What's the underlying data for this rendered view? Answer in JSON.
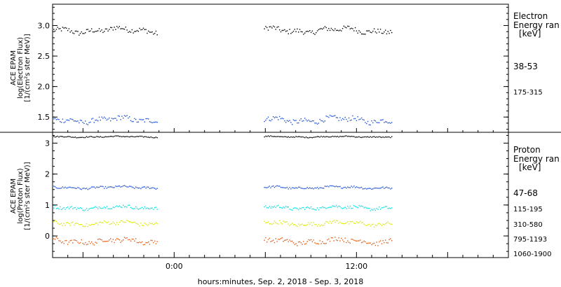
{
  "xlabel": "hours:minutes, Sep.  2, 2018 - Sep.  3, 2018",
  "x_ticks": [
    "0:00",
    "12:00"
  ],
  "colors": {
    "frame": "#000000",
    "black_series": "#000000",
    "blue_series": "#1f4fd0",
    "cyan_series": "#00dede",
    "yellow_series": "#d9e600",
    "orange_series": "#e05a10"
  },
  "chart_data": [
    {
      "type": "scatter",
      "panel": "electron",
      "ylabel_lines": [
        "ACE EPAM",
        "log(Electron Flux)",
        "[1/(cm²s ster MeV)]"
      ],
      "yticks": [
        {
          "value": 3.0,
          "label": "3.0"
        },
        {
          "value": 2.5,
          "label": "2.5"
        },
        {
          "value": 2.0,
          "label": "2.0"
        },
        {
          "value": 1.5,
          "label": "1.5"
        }
      ],
      "ylim": [
        1.25,
        3.35
      ],
      "xlim_hours": [
        -8,
        22
      ],
      "data_gaps_hours": [
        [
          -1.1,
          5.9
        ],
        [
          14.3,
          22
        ]
      ],
      "legend": {
        "title_lines": [
          "Electron",
          "Energy ran",
          "[keV]"
        ],
        "entries": [
          {
            "label": "38-53",
            "color_key": "black_series"
          },
          {
            "label": "175-315",
            "color_key": "blue_series"
          }
        ]
      },
      "series": [
        {
          "name": "38-53",
          "color_key": "black_series",
          "level": 2.93,
          "noise": 0.05
        },
        {
          "name": "175-315",
          "color_key": "blue_series",
          "level": 1.46,
          "noise": 0.05
        }
      ]
    },
    {
      "type": "scatter",
      "panel": "proton",
      "ylabel_lines": [
        "ACE EPAM",
        "log(Proton Flux)",
        "[1/(cm²s ster MeV)]"
      ],
      "yticks": [
        {
          "value": 3,
          "label": "3"
        },
        {
          "value": 2,
          "label": "2"
        },
        {
          "value": 1,
          "label": "1"
        },
        {
          "value": 0,
          "label": "0"
        }
      ],
      "ylim": [
        -0.7,
        3.35
      ],
      "xlim_hours": [
        -8,
        22
      ],
      "data_gaps_hours": [
        [
          -1.1,
          5.9
        ],
        [
          14.3,
          22
        ]
      ],
      "legend": {
        "title_lines": [
          "Proton",
          "Energy ran",
          "[keV]"
        ],
        "entries": [
          {
            "label": "47-68",
            "color_key": "black_series"
          },
          {
            "label": "115-195",
            "color_key": "blue_series"
          },
          {
            "label": "310-580",
            "color_key": "cyan_series"
          },
          {
            "label": "795-1193",
            "color_key": "yellow_series"
          },
          {
            "label": "1060-1900",
            "color_key": "orange_series"
          }
        ]
      },
      "series": [
        {
          "name": "47-68",
          "color_key": "black_series",
          "level": 3.22,
          "noise": 0.02
        },
        {
          "name": "115-195",
          "color_key": "blue_series",
          "level": 1.58,
          "noise": 0.04
        },
        {
          "name": "310-580",
          "color_key": "cyan_series",
          "level": 0.93,
          "noise": 0.06
        },
        {
          "name": "795-1193",
          "color_key": "yellow_series",
          "level": 0.42,
          "noise": 0.07
        },
        {
          "name": "1060-1900",
          "color_key": "orange_series",
          "level": -0.15,
          "noise": 0.09
        }
      ]
    }
  ]
}
